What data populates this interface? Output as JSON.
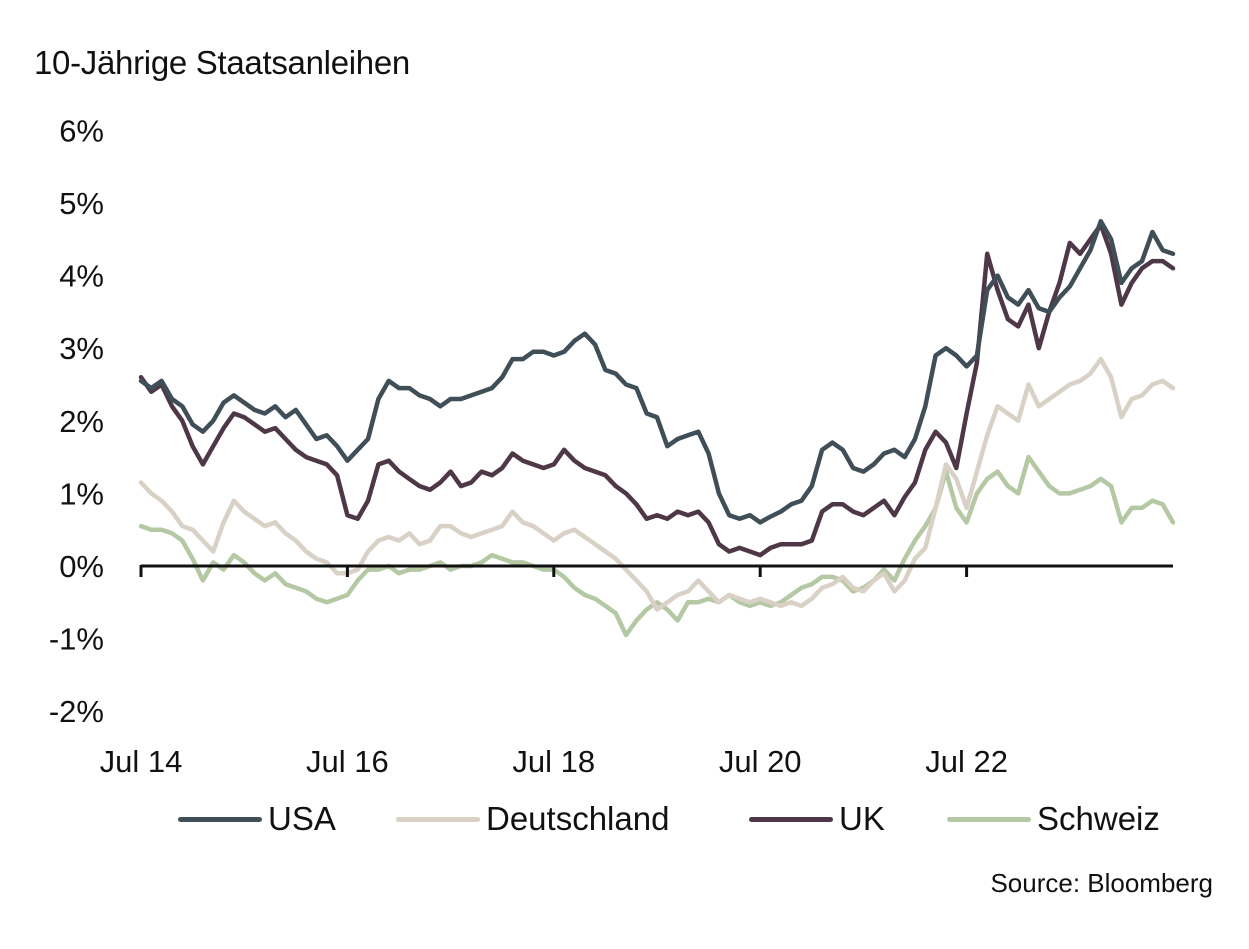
{
  "chart_data": {
    "type": "line",
    "title": "10-Jährige Staatsanleihen",
    "xlabel": "",
    "ylabel": "",
    "source": "Source: Bloomberg",
    "ylim": [
      -2,
      6
    ],
    "yticks": [
      6,
      5,
      4,
      3,
      2,
      1,
      0,
      -1,
      -2
    ],
    "ytick_labels": [
      "6%",
      "5%",
      "4%",
      "3%",
      "2%",
      "1%",
      "0%",
      "-1%",
      "-2%"
    ],
    "xlim": [
      2014.5,
      2024.5
    ],
    "xticks": [
      2014.5,
      2016.5,
      2018.5,
      2020.5,
      2022.5
    ],
    "xtick_labels": [
      "Jul 14",
      "Jul 16",
      "Jul 18",
      "Jul 20",
      "Jul 22"
    ],
    "grid": false,
    "legend_position": "bottom",
    "series": [
      {
        "name": "USA",
        "color": "#3f4e57",
        "x": [
          2014.5,
          2014.6,
          2014.7,
          2014.8,
          2014.9,
          2015.0,
          2015.1,
          2015.2,
          2015.3,
          2015.4,
          2015.5,
          2015.6,
          2015.7,
          2015.8,
          2015.9,
          2016.0,
          2016.1,
          2016.2,
          2016.3,
          2016.4,
          2016.5,
          2016.6,
          2016.7,
          2016.8,
          2016.9,
          2017.0,
          2017.1,
          2017.2,
          2017.3,
          2017.4,
          2017.5,
          2017.6,
          2017.7,
          2017.8,
          2017.9,
          2018.0,
          2018.1,
          2018.2,
          2018.3,
          2018.4,
          2018.5,
          2018.6,
          2018.7,
          2018.8,
          2018.9,
          2019.0,
          2019.1,
          2019.2,
          2019.3,
          2019.4,
          2019.5,
          2019.6,
          2019.7,
          2019.8,
          2019.9,
          2020.0,
          2020.1,
          2020.2,
          2020.3,
          2020.4,
          2020.5,
          2020.6,
          2020.7,
          2020.8,
          2020.9,
          2021.0,
          2021.1,
          2021.2,
          2021.3,
          2021.4,
          2021.5,
          2021.6,
          2021.7,
          2021.8,
          2021.9,
          2022.0,
          2022.1,
          2022.2,
          2022.3,
          2022.4,
          2022.5,
          2022.6,
          2022.7,
          2022.8,
          2022.9,
          2023.0,
          2023.1,
          2023.2,
          2023.3,
          2023.4,
          2023.5,
          2023.6,
          2023.7,
          2023.8,
          2023.9,
          2024.0,
          2024.1,
          2024.2,
          2024.3,
          2024.4,
          2024.5
        ],
        "values": [
          2.55,
          2.45,
          2.55,
          2.3,
          2.2,
          1.95,
          1.85,
          2.0,
          2.25,
          2.35,
          2.25,
          2.15,
          2.1,
          2.2,
          2.05,
          2.15,
          1.95,
          1.75,
          1.8,
          1.65,
          1.45,
          1.6,
          1.75,
          2.3,
          2.55,
          2.45,
          2.45,
          2.35,
          2.3,
          2.2,
          2.3,
          2.3,
          2.35,
          2.4,
          2.45,
          2.6,
          2.85,
          2.85,
          2.95,
          2.95,
          2.9,
          2.95,
          3.1,
          3.2,
          3.05,
          2.7,
          2.65,
          2.5,
          2.45,
          2.1,
          2.05,
          1.65,
          1.75,
          1.8,
          1.85,
          1.55,
          1.0,
          0.7,
          0.65,
          0.7,
          0.6,
          0.68,
          0.75,
          0.85,
          0.9,
          1.1,
          1.6,
          1.7,
          1.6,
          1.35,
          1.3,
          1.4,
          1.55,
          1.6,
          1.5,
          1.75,
          2.2,
          2.9,
          3.0,
          2.9,
          2.75,
          2.9,
          3.8,
          4.0,
          3.7,
          3.6,
          3.8,
          3.55,
          3.5,
          3.7,
          3.85,
          4.1,
          4.35,
          4.75,
          4.5,
          3.9,
          4.1,
          4.2,
          4.6,
          4.35,
          4.3
        ]
      },
      {
        "name": "Deutschland",
        "color": "#d9d1c5",
        "x": [
          2014.5,
          2014.6,
          2014.7,
          2014.8,
          2014.9,
          2015.0,
          2015.1,
          2015.2,
          2015.3,
          2015.4,
          2015.5,
          2015.6,
          2015.7,
          2015.8,
          2015.9,
          2016.0,
          2016.1,
          2016.2,
          2016.3,
          2016.4,
          2016.5,
          2016.6,
          2016.7,
          2016.8,
          2016.9,
          2017.0,
          2017.1,
          2017.2,
          2017.3,
          2017.4,
          2017.5,
          2017.6,
          2017.7,
          2017.8,
          2017.9,
          2018.0,
          2018.1,
          2018.2,
          2018.3,
          2018.4,
          2018.5,
          2018.6,
          2018.7,
          2018.8,
          2018.9,
          2019.0,
          2019.1,
          2019.2,
          2019.3,
          2019.4,
          2019.5,
          2019.6,
          2019.7,
          2019.8,
          2019.9,
          2020.0,
          2020.1,
          2020.2,
          2020.3,
          2020.4,
          2020.5,
          2020.6,
          2020.7,
          2020.8,
          2020.9,
          2021.0,
          2021.1,
          2021.2,
          2021.3,
          2021.4,
          2021.5,
          2021.6,
          2021.7,
          2021.8,
          2021.9,
          2022.0,
          2022.1,
          2022.2,
          2022.3,
          2022.4,
          2022.5,
          2022.6,
          2022.7,
          2022.8,
          2022.9,
          2023.0,
          2023.1,
          2023.2,
          2023.3,
          2023.4,
          2023.5,
          2023.6,
          2023.7,
          2023.8,
          2023.9,
          2024.0,
          2024.1,
          2024.2,
          2024.3,
          2024.4,
          2024.5
        ],
        "values": [
          1.15,
          1.0,
          0.9,
          0.75,
          0.55,
          0.5,
          0.35,
          0.2,
          0.6,
          0.9,
          0.75,
          0.65,
          0.55,
          0.6,
          0.45,
          0.35,
          0.2,
          0.1,
          0.05,
          -0.1,
          -0.1,
          -0.05,
          0.2,
          0.35,
          0.4,
          0.35,
          0.45,
          0.3,
          0.35,
          0.55,
          0.55,
          0.45,
          0.4,
          0.45,
          0.5,
          0.55,
          0.75,
          0.6,
          0.55,
          0.45,
          0.35,
          0.45,
          0.5,
          0.4,
          0.3,
          0.2,
          0.1,
          -0.05,
          -0.2,
          -0.35,
          -0.6,
          -0.5,
          -0.4,
          -0.35,
          -0.2,
          -0.35,
          -0.5,
          -0.4,
          -0.45,
          -0.5,
          -0.45,
          -0.5,
          -0.55,
          -0.5,
          -0.55,
          -0.45,
          -0.3,
          -0.25,
          -0.15,
          -0.3,
          -0.35,
          -0.2,
          -0.1,
          -0.35,
          -0.2,
          0.1,
          0.25,
          0.8,
          1.4,
          1.2,
          0.8,
          1.3,
          1.8,
          2.2,
          2.1,
          2.0,
          2.5,
          2.2,
          2.3,
          2.4,
          2.5,
          2.55,
          2.65,
          2.85,
          2.6,
          2.05,
          2.3,
          2.35,
          2.5,
          2.55,
          2.45
        ]
      },
      {
        "name": "UK",
        "color": "#4e3848",
        "x": [
          2014.5,
          2014.6,
          2014.7,
          2014.8,
          2014.9,
          2015.0,
          2015.1,
          2015.2,
          2015.3,
          2015.4,
          2015.5,
          2015.6,
          2015.7,
          2015.8,
          2015.9,
          2016.0,
          2016.1,
          2016.2,
          2016.3,
          2016.4,
          2016.5,
          2016.6,
          2016.7,
          2016.8,
          2016.9,
          2017.0,
          2017.1,
          2017.2,
          2017.3,
          2017.4,
          2017.5,
          2017.6,
          2017.7,
          2017.8,
          2017.9,
          2018.0,
          2018.1,
          2018.2,
          2018.3,
          2018.4,
          2018.5,
          2018.6,
          2018.7,
          2018.8,
          2018.9,
          2019.0,
          2019.1,
          2019.2,
          2019.3,
          2019.4,
          2019.5,
          2019.6,
          2019.7,
          2019.8,
          2019.9,
          2020.0,
          2020.1,
          2020.2,
          2020.3,
          2020.4,
          2020.5,
          2020.6,
          2020.7,
          2020.8,
          2020.9,
          2021.0,
          2021.1,
          2021.2,
          2021.3,
          2021.4,
          2021.5,
          2021.6,
          2021.7,
          2021.8,
          2021.9,
          2022.0,
          2022.1,
          2022.2,
          2022.3,
          2022.4,
          2022.5,
          2022.6,
          2022.7,
          2022.8,
          2022.9,
          2023.0,
          2023.1,
          2023.2,
          2023.3,
          2023.4,
          2023.5,
          2023.6,
          2023.7,
          2023.8,
          2023.9,
          2024.0,
          2024.1,
          2024.2,
          2024.3,
          2024.4,
          2024.5
        ],
        "values": [
          2.6,
          2.4,
          2.5,
          2.2,
          2.0,
          1.65,
          1.4,
          1.65,
          1.9,
          2.1,
          2.05,
          1.95,
          1.85,
          1.9,
          1.75,
          1.6,
          1.5,
          1.45,
          1.4,
          1.25,
          0.7,
          0.65,
          0.9,
          1.4,
          1.45,
          1.3,
          1.2,
          1.1,
          1.05,
          1.15,
          1.3,
          1.1,
          1.15,
          1.3,
          1.25,
          1.35,
          1.55,
          1.45,
          1.4,
          1.35,
          1.4,
          1.6,
          1.45,
          1.35,
          1.3,
          1.25,
          1.1,
          1.0,
          0.85,
          0.65,
          0.7,
          0.65,
          0.75,
          0.7,
          0.75,
          0.6,
          0.3,
          0.2,
          0.25,
          0.2,
          0.15,
          0.25,
          0.3,
          0.3,
          0.3,
          0.35,
          0.75,
          0.85,
          0.85,
          0.75,
          0.7,
          0.8,
          0.9,
          0.7,
          0.95,
          1.15,
          1.6,
          1.85,
          1.7,
          1.35,
          2.1,
          2.8,
          4.3,
          3.8,
          3.4,
          3.3,
          3.6,
          3.0,
          3.5,
          3.9,
          4.45,
          4.3,
          4.5,
          4.7,
          4.3,
          3.6,
          3.9,
          4.1,
          4.2,
          4.2,
          4.1
        ]
      },
      {
        "name": "Schweiz",
        "color": "#b5c8a4",
        "x": [
          2014.5,
          2014.6,
          2014.7,
          2014.8,
          2014.9,
          2015.0,
          2015.1,
          2015.2,
          2015.3,
          2015.4,
          2015.5,
          2015.6,
          2015.7,
          2015.8,
          2015.9,
          2016.0,
          2016.1,
          2016.2,
          2016.3,
          2016.4,
          2016.5,
          2016.6,
          2016.7,
          2016.8,
          2016.9,
          2017.0,
          2017.1,
          2017.2,
          2017.3,
          2017.4,
          2017.5,
          2017.6,
          2017.7,
          2017.8,
          2017.9,
          2018.0,
          2018.1,
          2018.2,
          2018.3,
          2018.4,
          2018.5,
          2018.6,
          2018.7,
          2018.8,
          2018.9,
          2019.0,
          2019.1,
          2019.2,
          2019.3,
          2019.4,
          2019.5,
          2019.6,
          2019.7,
          2019.8,
          2019.9,
          2020.0,
          2020.1,
          2020.2,
          2020.3,
          2020.4,
          2020.5,
          2020.6,
          2020.7,
          2020.8,
          2020.9,
          2021.0,
          2021.1,
          2021.2,
          2021.3,
          2021.4,
          2021.5,
          2021.6,
          2021.7,
          2021.8,
          2021.9,
          2022.0,
          2022.1,
          2022.2,
          2022.3,
          2022.4,
          2022.5,
          2022.6,
          2022.7,
          2022.8,
          2022.9,
          2023.0,
          2023.1,
          2023.2,
          2023.3,
          2023.4,
          2023.5,
          2023.6,
          2023.7,
          2023.8,
          2023.9,
          2024.0,
          2024.1,
          2024.2,
          2024.3,
          2024.4,
          2024.5
        ],
        "values": [
          0.55,
          0.5,
          0.5,
          0.45,
          0.35,
          0.1,
          -0.2,
          0.05,
          -0.05,
          0.15,
          0.05,
          -0.1,
          -0.2,
          -0.1,
          -0.25,
          -0.3,
          -0.35,
          -0.45,
          -0.5,
          -0.45,
          -0.4,
          -0.2,
          -0.05,
          -0.05,
          0.0,
          -0.1,
          -0.05,
          -0.05,
          0.0,
          0.05,
          -0.05,
          0.0,
          0.0,
          0.05,
          0.15,
          0.1,
          0.05,
          0.05,
          0.0,
          -0.05,
          -0.05,
          -0.15,
          -0.3,
          -0.4,
          -0.45,
          -0.55,
          -0.65,
          -0.95,
          -0.75,
          -0.6,
          -0.5,
          -0.6,
          -0.75,
          -0.5,
          -0.5,
          -0.45,
          -0.5,
          -0.4,
          -0.5,
          -0.55,
          -0.5,
          -0.55,
          -0.5,
          -0.4,
          -0.3,
          -0.25,
          -0.15,
          -0.15,
          -0.2,
          -0.35,
          -0.3,
          -0.2,
          -0.05,
          -0.2,
          0.1,
          0.35,
          0.55,
          0.8,
          1.3,
          0.8,
          0.6,
          1.0,
          1.2,
          1.3,
          1.1,
          1.0,
          1.5,
          1.3,
          1.1,
          1.0,
          1.0,
          1.05,
          1.1,
          1.2,
          1.1,
          0.6,
          0.8,
          0.8,
          0.9,
          0.85,
          0.6
        ]
      }
    ]
  }
}
